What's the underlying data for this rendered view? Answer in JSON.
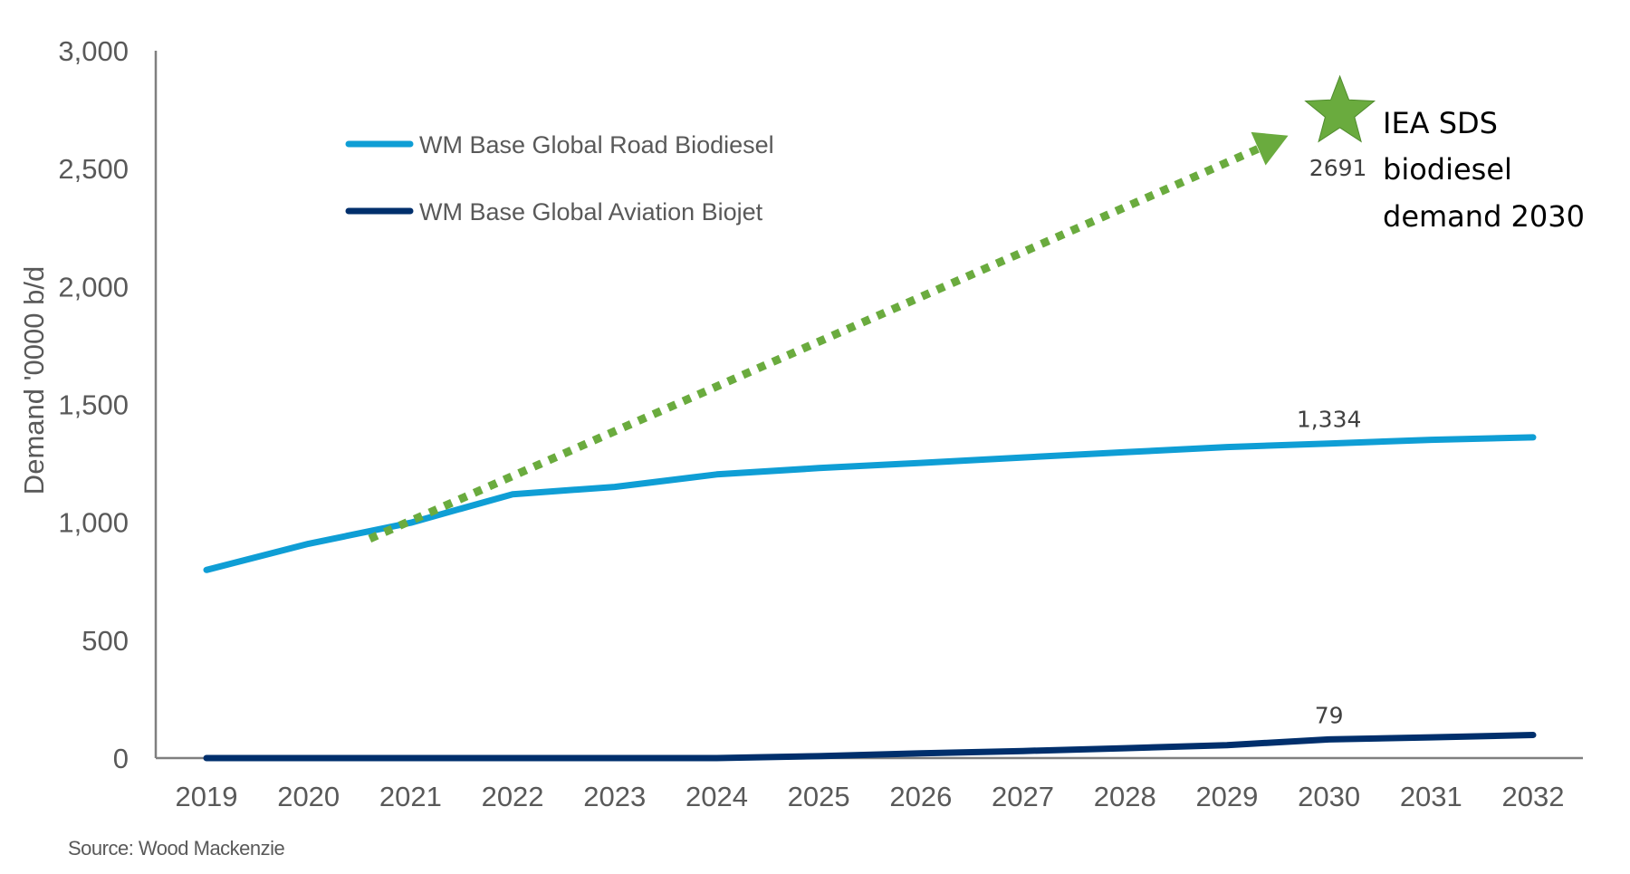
{
  "chart_data": {
    "type": "line",
    "title": "",
    "xlabel": "",
    "ylabel": "Demand '0000 b/d",
    "ylim": [
      0,
      3000
    ],
    "yticks": [
      0,
      500,
      1000,
      1500,
      2000,
      2500,
      3000
    ],
    "ytick_labels": [
      "0",
      "500",
      "1,000",
      "1,500",
      "2,000",
      "2,500",
      "3,000"
    ],
    "grid": false,
    "legend_position": "top-left",
    "categories": [
      "2019",
      "2020",
      "2021",
      "2022",
      "2023",
      "2024",
      "2025",
      "2026",
      "2027",
      "2028",
      "2029",
      "2030",
      "2031",
      "2032"
    ],
    "series": [
      {
        "name": "WM Base Global Road Biodiesel",
        "color": "#0F9ED5",
        "values": [
          798,
          909,
          998,
          1119,
          1150,
          1203,
          1230,
          1252,
          1275,
          1297,
          1319,
          1334,
          1350,
          1360
        ],
        "data_labels": [
          {
            "category": "2030",
            "text": "1,334"
          }
        ]
      },
      {
        "name": "WM Base Global Aviation Biojet",
        "color": "#002F6C",
        "values": [
          0,
          0,
          0,
          0,
          0,
          0,
          8,
          20,
          30,
          42,
          55,
          79,
          88,
          98
        ],
        "data_labels": [
          {
            "category": "2030",
            "text": "79"
          }
        ]
      }
    ],
    "annotations": {
      "trend_arrow": {
        "style": "dotted",
        "color": "#6AAB3E",
        "from": {
          "x": 2020.6,
          "y": 930
        },
        "to": {
          "x": 2029.6,
          "y": 2640
        }
      },
      "target_marker": {
        "shape": "star",
        "color": "#6AAB3E",
        "category": "2030",
        "value": 2691,
        "value_label": "2691",
        "text_lines": [
          "IEA SDS",
          "biodiesel",
          "demand 2030"
        ]
      }
    },
    "source": "Source: Wood Mackenzie"
  }
}
